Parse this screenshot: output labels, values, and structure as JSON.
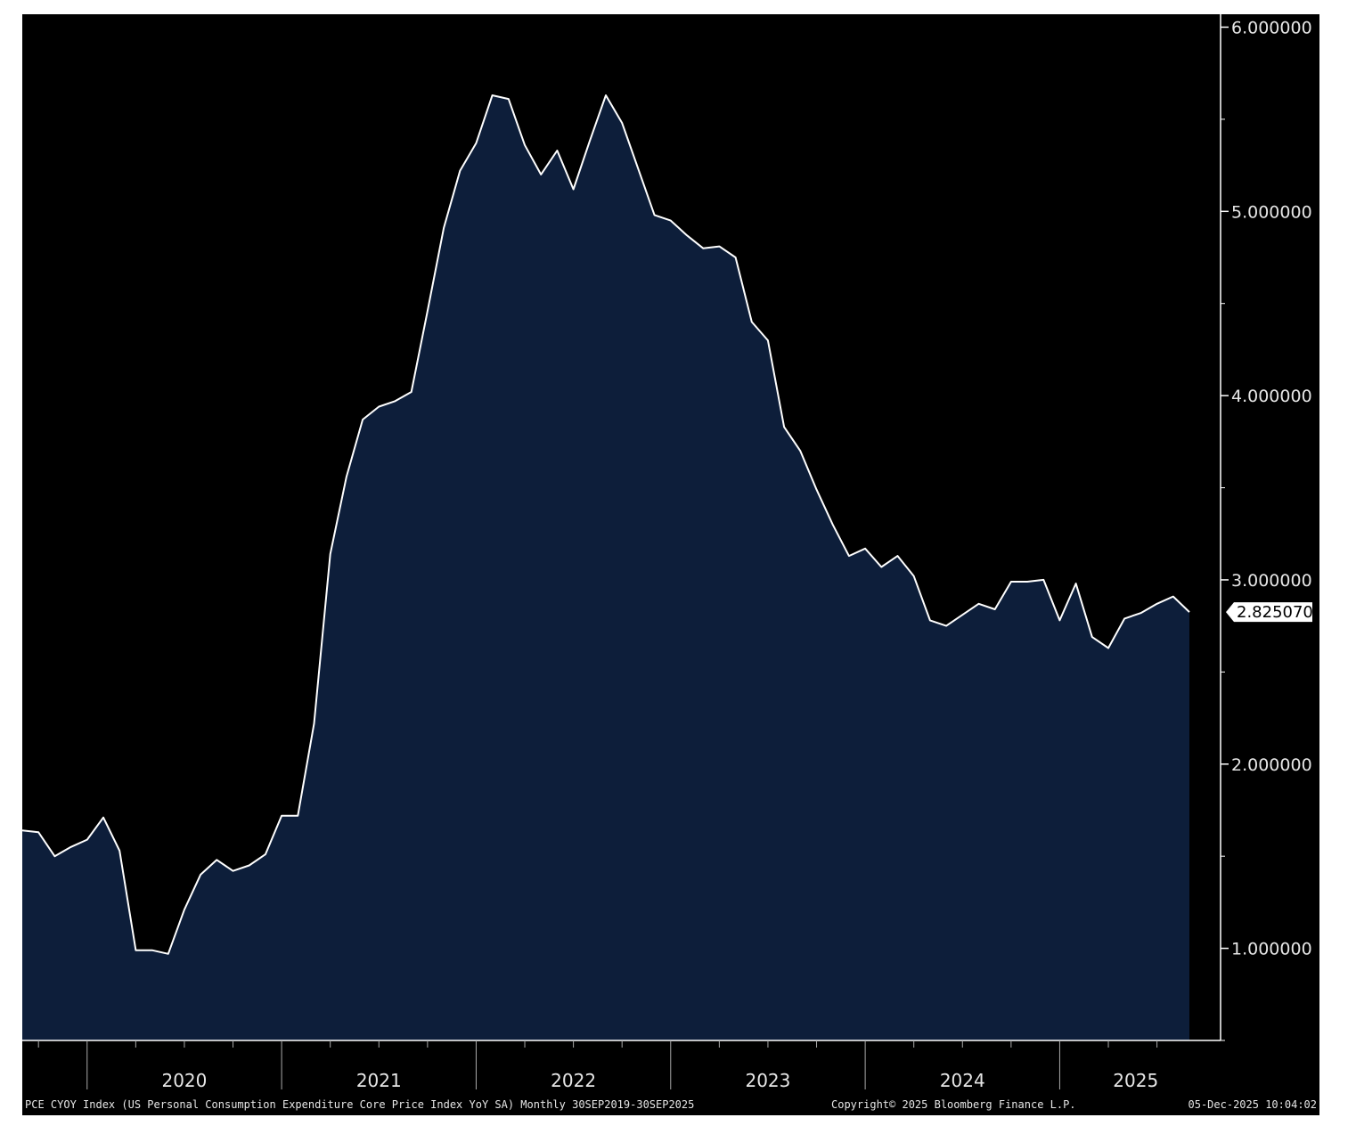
{
  "footer": {
    "description": "PCE CYOY Index (US Personal Consumption Expenditure Core Price Index YoY SA) Monthly 30SEP2019-30SEP2025",
    "copyright": "Copyright© 2025 Bloomberg Finance L.P.",
    "timestamp": "05-Dec-2025 10:04:02"
  },
  "colors": {
    "background": "#000000",
    "area_fill": "#0d1e3a",
    "line": "#ffffff",
    "text": "#e6e6e6"
  },
  "chart_data": {
    "type": "area",
    "title": "",
    "xlabel": "",
    "ylabel": "",
    "x_range": [
      "2019-09",
      "2025-09"
    ],
    "ylim": [
      0.5,
      6.07
    ],
    "y_axis_position": "right",
    "grid": false,
    "y_ticks": [
      {
        "value": 1.0,
        "label": "1.000000"
      },
      {
        "value": 2.0,
        "label": "2.000000"
      },
      {
        "value": 3.0,
        "label": "3.000000"
      },
      {
        "value": 4.0,
        "label": "4.000000"
      },
      {
        "value": 5.0,
        "label": "5.000000"
      },
      {
        "value": 6.0,
        "label": "6.000000"
      }
    ],
    "x_year_labels": [
      "2020",
      "2021",
      "2022",
      "2023",
      "2024",
      "2025"
    ],
    "last_value_label": "2.825070",
    "series": [
      {
        "x": [
          "2019-09",
          "2019-10",
          "2019-11",
          "2019-12",
          "2020-01",
          "2020-02",
          "2020-03",
          "2020-04",
          "2020-05",
          "2020-06",
          "2020-07",
          "2020-08",
          "2020-09",
          "2020-10",
          "2020-11",
          "2020-12",
          "2021-01",
          "2021-02",
          "2021-03",
          "2021-04",
          "2021-05",
          "2021-06",
          "2021-07",
          "2021-08",
          "2021-09",
          "2021-10",
          "2021-11",
          "2021-12",
          "2022-01",
          "2022-02",
          "2022-03",
          "2022-04",
          "2022-05",
          "2022-06",
          "2022-07",
          "2022-08",
          "2022-09",
          "2022-10",
          "2022-11",
          "2022-12",
          "2023-01",
          "2023-02",
          "2023-03",
          "2023-04",
          "2023-05",
          "2023-06",
          "2023-07",
          "2023-08",
          "2023-09",
          "2023-10",
          "2023-11",
          "2023-12",
          "2024-01",
          "2024-02",
          "2024-03",
          "2024-04",
          "2024-05",
          "2024-06",
          "2024-07",
          "2024-08",
          "2024-09",
          "2024-10",
          "2024-11",
          "2024-12",
          "2025-01",
          "2025-02",
          "2025-03",
          "2025-04",
          "2025-05",
          "2025-06",
          "2025-07",
          "2025-08",
          "2025-09"
        ],
        "values": [
          1.64,
          1.63,
          1.5,
          1.55,
          1.59,
          1.71,
          1.53,
          0.99,
          0.99,
          0.97,
          1.21,
          1.4,
          1.48,
          1.42,
          1.45,
          1.51,
          1.72,
          1.72,
          2.22,
          3.14,
          3.56,
          3.87,
          3.94,
          3.97,
          4.02,
          4.46,
          4.91,
          5.22,
          5.37,
          5.63,
          5.61,
          5.36,
          5.2,
          5.33,
          5.12,
          5.38,
          5.63,
          5.48,
          5.23,
          4.98,
          4.95,
          4.87,
          4.8,
          4.81,
          4.75,
          4.4,
          4.3,
          3.83,
          3.7,
          3.49,
          3.3,
          3.13,
          3.17,
          3.07,
          3.13,
          3.02,
          2.78,
          2.75,
          2.81,
          2.87,
          2.84,
          2.99,
          2.99,
          3.0,
          2.78,
          2.98,
          2.69,
          2.63,
          2.79,
          2.82,
          2.87,
          2.91,
          2.82507
        ]
      }
    ]
  }
}
